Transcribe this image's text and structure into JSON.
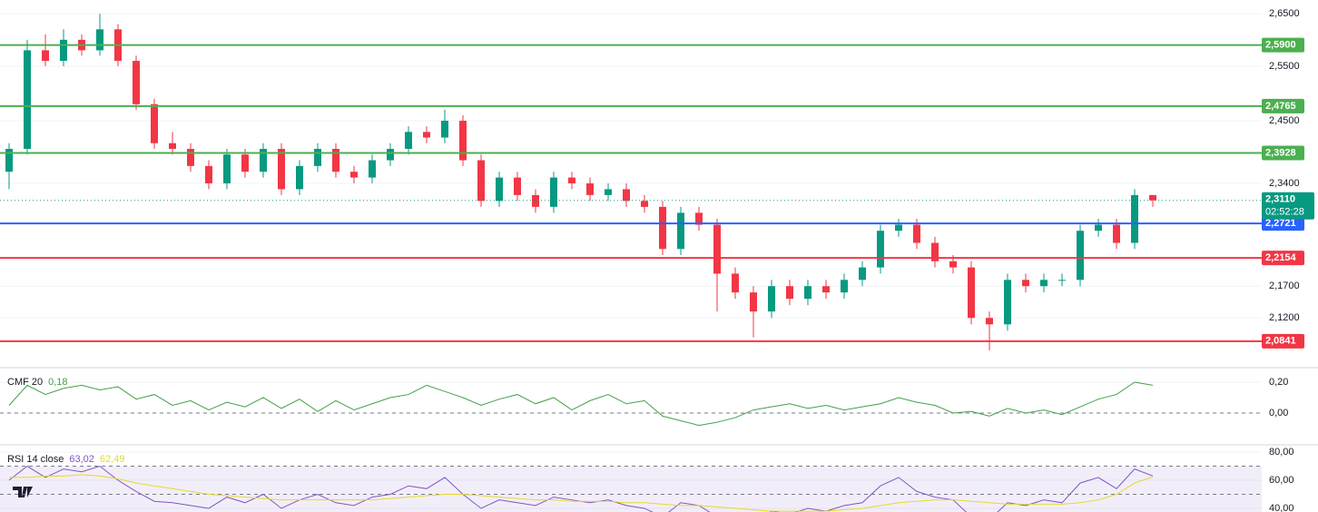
{
  "chart_data": [
    {
      "type": "candlestick",
      "log": true,
      "ylim": [
        2.044,
        2.677
      ],
      "yticks": [
        {
          "value": 2.65,
          "label": "2,6500"
        },
        {
          "value": 2.55,
          "label": "2,5500"
        },
        {
          "value": 2.45,
          "label": "2,4500"
        },
        {
          "value": 2.34,
          "label": "2,3400"
        },
        {
          "value": 2.17,
          "label": "2,1700"
        },
        {
          "value": 2.12,
          "label": "2,1200"
        }
      ],
      "up_color": "#089981",
      "down_color": "#f23645",
      "open": [
        2.36,
        2.4,
        2.58,
        2.56,
        2.6,
        2.58,
        2.62,
        2.56,
        2.48,
        2.41,
        2.4,
        2.37,
        2.34,
        2.39,
        2.36,
        2.4,
        2.33,
        2.37,
        2.4,
        2.36,
        2.35,
        2.38,
        2.4,
        2.43,
        2.42,
        2.45,
        2.38,
        2.31,
        2.35,
        2.32,
        2.3,
        2.35,
        2.34,
        2.32,
        2.33,
        2.31,
        2.3,
        2.23,
        2.29,
        2.27,
        2.19,
        2.16,
        2.13,
        2.17,
        2.15,
        2.17,
        2.16,
        2.18,
        2.2,
        2.26,
        2.27,
        2.24,
        2.21,
        2.2,
        2.12,
        2.11,
        2.18,
        2.17,
        2.18,
        2.18,
        2.26,
        2.27,
        2.24,
        2.32
      ],
      "high": [
        2.41,
        2.6,
        2.61,
        2.62,
        2.61,
        2.65,
        2.63,
        2.57,
        2.49,
        2.43,
        2.41,
        2.38,
        2.4,
        2.4,
        2.41,
        2.41,
        2.38,
        2.41,
        2.41,
        2.37,
        2.39,
        2.41,
        2.44,
        2.44,
        2.47,
        2.46,
        2.39,
        2.36,
        2.36,
        2.33,
        2.36,
        2.36,
        2.35,
        2.34,
        2.34,
        2.32,
        2.31,
        2.3,
        2.3,
        2.28,
        2.2,
        2.17,
        2.18,
        2.18,
        2.18,
        2.18,
        2.19,
        2.21,
        2.27,
        2.28,
        2.28,
        2.25,
        2.22,
        2.21,
        2.13,
        2.19,
        2.19,
        2.19,
        2.19,
        2.27,
        2.28,
        2.28,
        2.33,
        2.32
      ],
      "low": [
        2.33,
        2.39,
        2.55,
        2.55,
        2.57,
        2.57,
        2.55,
        2.47,
        2.4,
        2.39,
        2.36,
        2.33,
        2.33,
        2.35,
        2.35,
        2.32,
        2.32,
        2.36,
        2.35,
        2.34,
        2.34,
        2.37,
        2.39,
        2.41,
        2.41,
        2.37,
        2.3,
        2.3,
        2.31,
        2.29,
        2.29,
        2.33,
        2.31,
        2.31,
        2.3,
        2.29,
        2.22,
        2.22,
        2.26,
        2.13,
        2.15,
        2.09,
        2.12,
        2.14,
        2.14,
        2.15,
        2.15,
        2.17,
        2.19,
        2.25,
        2.23,
        2.2,
        2.19,
        2.11,
        2.07,
        2.1,
        2.16,
        2.16,
        2.17,
        2.17,
        2.25,
        2.23,
        2.23,
        2.3
      ],
      "close": [
        2.4,
        2.58,
        2.56,
        2.6,
        2.58,
        2.62,
        2.56,
        2.48,
        2.41,
        2.4,
        2.37,
        2.34,
        2.39,
        2.36,
        2.4,
        2.33,
        2.37,
        2.4,
        2.36,
        2.35,
        2.38,
        2.4,
        2.43,
        2.42,
        2.45,
        2.38,
        2.31,
        2.35,
        2.32,
        2.3,
        2.35,
        2.34,
        2.32,
        2.33,
        2.31,
        2.3,
        2.23,
        2.29,
        2.27,
        2.19,
        2.16,
        2.13,
        2.17,
        2.15,
        2.17,
        2.16,
        2.18,
        2.2,
        2.26,
        2.27,
        2.24,
        2.21,
        2.2,
        2.12,
        2.11,
        2.18,
        2.17,
        2.18,
        2.18,
        2.26,
        2.27,
        2.24,
        2.32,
        2.311
      ],
      "levels": [
        {
          "value": 2.59,
          "label": "2,5900",
          "color": "#4caf50"
        },
        {
          "value": 2.4765,
          "label": "2,4765",
          "color": "#4caf50"
        },
        {
          "value": 2.3928,
          "label": "2,3928",
          "color": "#4caf50"
        },
        {
          "value": 2.2721,
          "label": "2,2721",
          "color": "#2962ff"
        },
        {
          "value": 2.2154,
          "label": "2,2154",
          "color": "#f23645"
        },
        {
          "value": 2.0841,
          "label": "2,0841",
          "color": "#f23645"
        }
      ],
      "last_price": {
        "value": 2.311,
        "label": "2,3110",
        "countdown": "02:52:28",
        "color": "#089981"
      }
    },
    {
      "type": "line",
      "title": "CMF 20",
      "ylim": [
        -0.206,
        0.294
      ],
      "yticks": [
        {
          "value": 0.2,
          "label": "0,20"
        },
        {
          "value": 0,
          "label": "0,00"
        }
      ],
      "dashed_levels": [
        0
      ],
      "series": [
        {
          "color": "#43a047",
          "last_label": "0,18",
          "values": [
            0.05,
            0.18,
            0.12,
            0.16,
            0.18,
            0.15,
            0.17,
            0.09,
            0.12,
            0.05,
            0.08,
            0.02,
            0.07,
            0.04,
            0.1,
            0.03,
            0.09,
            0.01,
            0.08,
            0.02,
            0.06,
            0.1,
            0.12,
            0.18,
            0.14,
            0.1,
            0.05,
            0.09,
            0.12,
            0.06,
            0.1,
            0.02,
            0.08,
            0.12,
            0.06,
            0.08,
            -0.02,
            -0.05,
            -0.08,
            -0.06,
            -0.03,
            0.02,
            0.04,
            0.06,
            0.03,
            0.05,
            0.02,
            0.04,
            0.06,
            0.1,
            0.07,
            0.05,
            0.0,
            0.01,
            -0.02,
            0.03,
            0.0,
            0.02,
            -0.01,
            0.04,
            0.09,
            0.12,
            0.2,
            0.18
          ]
        }
      ]
    },
    {
      "type": "line",
      "title": "RSI 14 close",
      "ylim": [
        37.4,
        85.2
      ],
      "yticks": [
        {
          "value": 80,
          "label": "80,00"
        },
        {
          "value": 60,
          "label": "60,00"
        },
        {
          "value": 40,
          "label": "40,00"
        }
      ],
      "dashed_levels": [
        70,
        50
      ],
      "band_color": "rgba(126,87,194,0.1)",
      "series": [
        {
          "color": "#7e57c2",
          "last_label": "63,02",
          "values": [
            60,
            70,
            62,
            68,
            66,
            70,
            60,
            52,
            45,
            44,
            42,
            40,
            48,
            44,
            50,
            40,
            46,
            50,
            44,
            42,
            48,
            50,
            56,
            54,
            62,
            50,
            40,
            46,
            44,
            42,
            48,
            46,
            44,
            46,
            42,
            40,
            34,
            44,
            42,
            34,
            30,
            28,
            38,
            36,
            40,
            38,
            42,
            44,
            56,
            62,
            52,
            48,
            46,
            34,
            32,
            44,
            42,
            46,
            44,
            58,
            62,
            54,
            68,
            63.02
          ]
        },
        {
          "color": "#e6d832",
          "last_label": "62,49",
          "values": [
            62,
            62,
            63,
            63,
            64,
            63,
            61,
            58,
            56,
            54,
            52,
            50,
            49,
            48,
            47,
            46,
            46,
            46,
            46,
            46,
            46,
            47,
            48,
            49,
            50,
            50,
            49,
            48,
            47,
            46,
            46,
            45,
            45,
            45,
            44,
            44,
            43,
            42,
            42,
            41,
            40,
            39,
            38,
            38,
            38,
            38,
            39,
            40,
            42,
            44,
            45,
            46,
            46,
            45,
            44,
            43,
            43,
            43,
            43,
            44,
            46,
            50,
            58,
            62.49
          ]
        }
      ]
    }
  ]
}
